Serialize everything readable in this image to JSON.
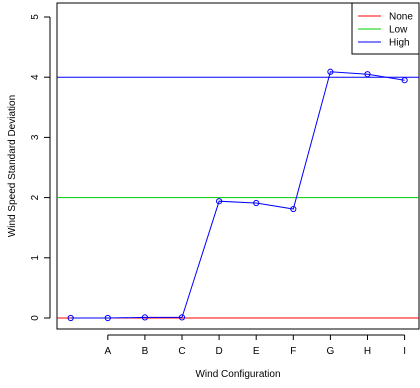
{
  "chart_data": {
    "type": "line",
    "xlabel": "Wind Configuration",
    "ylabel": "Wind Speed Standard Deviation",
    "categories": [
      "",
      "A",
      "B",
      "C",
      "D",
      "E",
      "F",
      "G",
      "H",
      "I"
    ],
    "ylim": [
      0,
      5
    ],
    "yticks": [
      "0",
      "1",
      "2",
      "3",
      "4",
      "5"
    ],
    "series": [
      {
        "values": [
          0.0,
          0.0,
          0.01,
          0.01,
          1.94,
          1.91,
          1.81,
          4.09,
          4.05,
          3.95
        ],
        "color": "#0000ff"
      }
    ],
    "reference_lines": [
      {
        "name": "None",
        "value": 0,
        "color": "#ff0000"
      },
      {
        "name": "Low",
        "value": 2,
        "color": "#00cc00"
      },
      {
        "name": "High",
        "value": 4,
        "color": "#0000ff"
      }
    ],
    "legend": {
      "placement": "top-right",
      "entries": [
        {
          "label": "None",
          "color": "#ff0000"
        },
        {
          "label": "Low",
          "color": "#00cc00"
        },
        {
          "label": "High",
          "color": "#0000ff"
        }
      ]
    },
    "grid": false
  }
}
